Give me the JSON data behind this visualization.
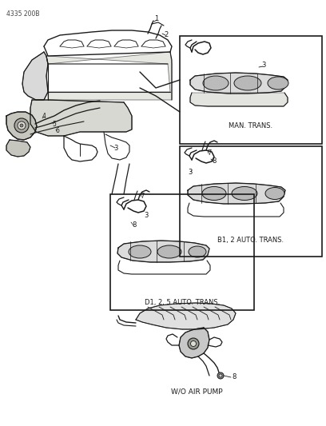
{
  "title_code": "4335 200B",
  "bg_color": "#ffffff",
  "line_color": "#1a1a1a",
  "label_man_trans": "MAN. TRANS.",
  "label_b1_trans": "B1, 2 AUTO. TRANS.",
  "label_d1_trans": "D1, 2, 5 AUTO. TRANS.",
  "label_wo_pump": "W/O AIR PUMP",
  "fig_width": 4.08,
  "fig_height": 5.33,
  "dpi": 100
}
